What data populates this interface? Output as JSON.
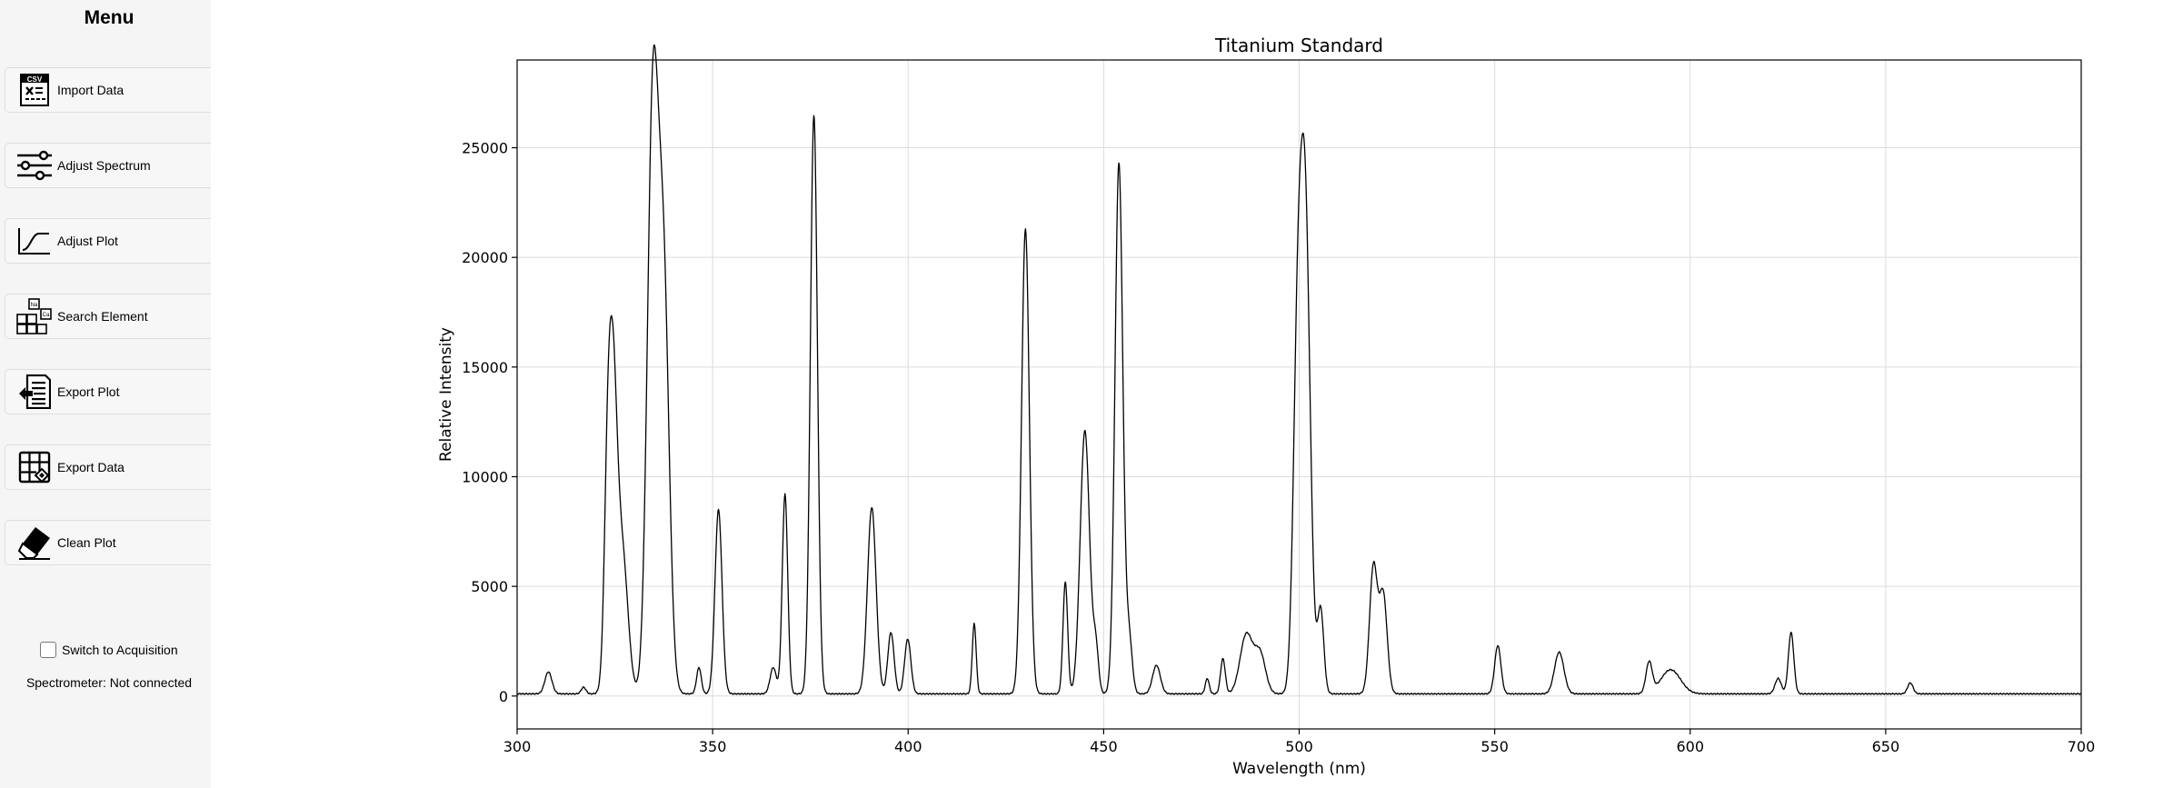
{
  "sidebar": {
    "title": "Menu",
    "items": [
      {
        "label": "Import Data",
        "icon": "csv-file-icon"
      },
      {
        "label": "Adjust Spectrum",
        "icon": "sliders-icon"
      },
      {
        "label": "Adjust Plot",
        "icon": "curve-plot-icon"
      },
      {
        "label": "Search Element",
        "icon": "periodic-elements-icon"
      },
      {
        "label": "Export Plot",
        "icon": "export-document-icon"
      },
      {
        "label": "Export Data",
        "icon": "export-grid-icon"
      },
      {
        "label": "Clean Plot",
        "icon": "eraser-icon"
      }
    ],
    "acquisition_toggle": {
      "label": "Switch to Acquisition",
      "checked": false
    },
    "status": "Spectrometer: Not connected"
  },
  "chart_data": {
    "type": "line",
    "title": "Titanium Standard",
    "xlabel": "Wavelength (nm)",
    "ylabel": "Relative Intensity",
    "xlim": [
      300,
      700
    ],
    "ylim": [
      -1500,
      29000
    ],
    "xticks": [
      300,
      350,
      400,
      450,
      500,
      550,
      600,
      650,
      700
    ],
    "yticks": [
      0,
      5000,
      10000,
      15000,
      20000,
      25000
    ],
    "grid": true,
    "line_color": "#000000",
    "baseline": 100,
    "peaks": [
      {
        "center": 308.0,
        "height": 1000,
        "width": 0.9
      },
      {
        "center": 317.0,
        "height": 300,
        "width": 0.6
      },
      {
        "center": 323.0,
        "height": 4500,
        "width": 0.8
      },
      {
        "center": 324.3,
        "height": 15000,
        "width": 1.2
      },
      {
        "center": 327.0,
        "height": 6000,
        "width": 1.4
      },
      {
        "center": 334.7,
        "height": 26500,
        "width": 1.4
      },
      {
        "center": 337.5,
        "height": 18000,
        "width": 1.4
      },
      {
        "center": 346.5,
        "height": 1200,
        "width": 0.6
      },
      {
        "center": 351.5,
        "height": 8400,
        "width": 0.9
      },
      {
        "center": 365.5,
        "height": 1200,
        "width": 0.8
      },
      {
        "center": 368.5,
        "height": 9100,
        "width": 0.7
      },
      {
        "center": 375.9,
        "height": 26400,
        "width": 0.9
      },
      {
        "center": 390.7,
        "height": 8500,
        "width": 1.1
      },
      {
        "center": 395.6,
        "height": 2800,
        "width": 0.8
      },
      {
        "center": 399.9,
        "height": 2500,
        "width": 0.8
      },
      {
        "center": 416.9,
        "height": 3200,
        "width": 0.5
      },
      {
        "center": 430.0,
        "height": 21200,
        "width": 1.0
      },
      {
        "center": 440.2,
        "height": 5100,
        "width": 0.6
      },
      {
        "center": 445.2,
        "height": 12000,
        "width": 1.2
      },
      {
        "center": 448.0,
        "height": 2000,
        "width": 0.7
      },
      {
        "center": 453.9,
        "height": 24200,
        "width": 1.0
      },
      {
        "center": 456.5,
        "height": 2500,
        "width": 0.8
      },
      {
        "center": 463.5,
        "height": 1300,
        "width": 1.0
      },
      {
        "center": 476.5,
        "height": 700,
        "width": 0.5
      },
      {
        "center": 480.5,
        "height": 1600,
        "width": 0.6
      },
      {
        "center": 486.5,
        "height": 2700,
        "width": 1.6
      },
      {
        "center": 490.0,
        "height": 1800,
        "width": 1.4
      },
      {
        "center": 499.5,
        "height": 13000,
        "width": 1.1
      },
      {
        "center": 501.5,
        "height": 22000,
        "width": 1.3
      },
      {
        "center": 505.5,
        "height": 3800,
        "width": 0.8
      },
      {
        "center": 519.0,
        "height": 5800,
        "width": 1.0
      },
      {
        "center": 521.5,
        "height": 4500,
        "width": 1.0
      },
      {
        "center": 550.8,
        "height": 2200,
        "width": 0.8
      },
      {
        "center": 566.5,
        "height": 1900,
        "width": 1.2
      },
      {
        "center": 589.5,
        "height": 1400,
        "width": 0.8
      },
      {
        "center": 595.0,
        "height": 1100,
        "width": 2.5
      },
      {
        "center": 622.5,
        "height": 700,
        "width": 0.8
      },
      {
        "center": 625.8,
        "height": 2800,
        "width": 0.7
      },
      {
        "center": 656.3,
        "height": 500,
        "width": 0.7
      }
    ]
  }
}
